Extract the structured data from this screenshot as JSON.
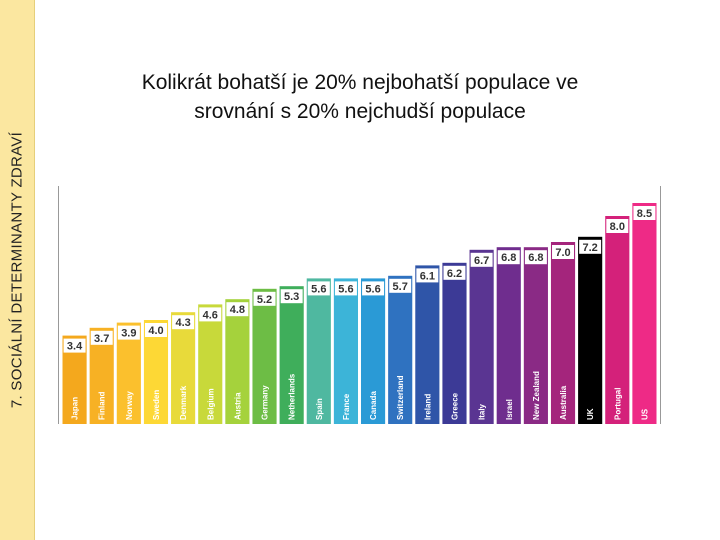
{
  "side_label": "7. SOCIÁLNÍ DETERMINANTY ZDRAVÍ",
  "title_lines": [
    "Kolikrát bohatší je 20% nejbohatší populace ve",
    "srovnání s 20% nejchudší populace"
  ],
  "chart_data": {
    "type": "bar",
    "title": "Kolikrát bohatší je 20% nejbohatší populace ve srovnání s 20% nejchudší populace",
    "categories": [
      "Japan",
      "Finland",
      "Norway",
      "Sweden",
      "Denmark",
      "Belgium",
      "Austria",
      "Germany",
      "Netherlands",
      "Spain",
      "France",
      "Canada",
      "Switzerland",
      "Ireland",
      "Greece",
      "Italy",
      "Israel",
      "New Zealand",
      "Australia",
      "UK",
      "Portugal",
      "US"
    ],
    "values": [
      3.4,
      3.7,
      3.9,
      4.0,
      4.3,
      4.6,
      4.8,
      5.2,
      5.3,
      5.6,
      5.6,
      5.6,
      5.7,
      6.1,
      6.2,
      6.7,
      6.8,
      6.8,
      7.0,
      7.2,
      8.0,
      8.5
    ],
    "value_labels": [
      "3.4",
      "3.7",
      "3.9",
      "4.0",
      "4.3",
      "4.6",
      "4.8",
      "5.2",
      "5.3",
      "5.6",
      "5.6",
      "5.6",
      "5.7",
      "6.1",
      "6.2",
      "6.7",
      "6.8",
      "6.8",
      "7.0",
      "7.2",
      "8.0",
      "8.5"
    ],
    "colors": [
      "#f4a81d",
      "#f7b124",
      "#fbc02d",
      "#fdd835",
      "#e8da3a",
      "#c8d93a",
      "#a5d23c",
      "#6dbd45",
      "#3fae5b",
      "#4fb8a0",
      "#3cb4d8",
      "#2a9ad6",
      "#2f72c0",
      "#2f55a8",
      "#3c3a96",
      "#5a3592",
      "#6f2d8e",
      "#8a2a85",
      "#a4257c",
      "#000000",
      "#d4217a",
      "#ee2a86"
    ],
    "ylim": [
      0,
      9
    ],
    "xlabel": "",
    "ylabel": ""
  }
}
